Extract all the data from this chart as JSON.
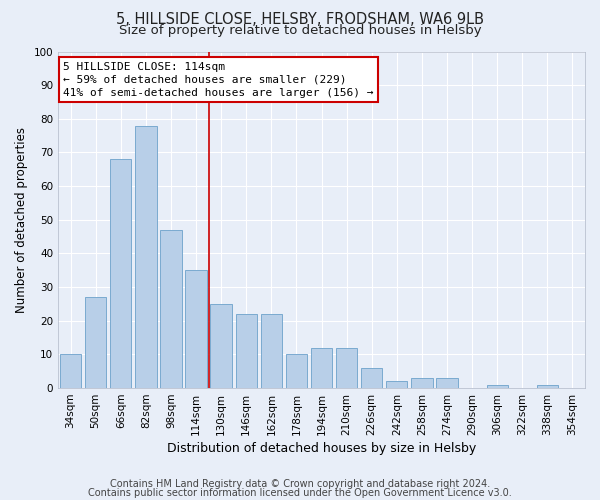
{
  "title1": "5, HILLSIDE CLOSE, HELSBY, FRODSHAM, WA6 9LB",
  "title2": "Size of property relative to detached houses in Helsby",
  "xlabel": "Distribution of detached houses by size in Helsby",
  "ylabel": "Number of detached properties",
  "categories": [
    "34sqm",
    "50sqm",
    "66sqm",
    "82sqm",
    "98sqm",
    "114sqm",
    "130sqm",
    "146sqm",
    "162sqm",
    "178sqm",
    "194sqm",
    "210sqm",
    "226sqm",
    "242sqm",
    "258sqm",
    "274sqm",
    "290sqm",
    "306sqm",
    "322sqm",
    "338sqm",
    "354sqm"
  ],
  "values": [
    10,
    27,
    68,
    78,
    47,
    35,
    25,
    22,
    22,
    10,
    12,
    12,
    6,
    2,
    3,
    3,
    0,
    1,
    0,
    1,
    0
  ],
  "bar_color": "#b8cfe8",
  "bar_edge_color": "#7aaad0",
  "highlight_index": 5,
  "ylim": [
    0,
    100
  ],
  "yticks": [
    0,
    10,
    20,
    30,
    40,
    50,
    60,
    70,
    80,
    90,
    100
  ],
  "annotation_line1": "5 HILLSIDE CLOSE: 114sqm",
  "annotation_line2": "← 59% of detached houses are smaller (229)",
  "annotation_line3": "41% of semi-detached houses are larger (156) →",
  "annotation_box_color": "#ffffff",
  "annotation_border_color": "#cc0000",
  "highlight_line_color": "#cc0000",
  "footnote1": "Contains HM Land Registry data © Crown copyright and database right 2024.",
  "footnote2": "Contains public sector information licensed under the Open Government Licence v3.0.",
  "bg_color": "#e8eef8",
  "grid_color": "#ffffff",
  "title1_fontsize": 10.5,
  "title2_fontsize": 9.5,
  "xlabel_fontsize": 9,
  "ylabel_fontsize": 8.5,
  "tick_fontsize": 7.5,
  "annotation_fontsize": 8,
  "footnote_fontsize": 7
}
